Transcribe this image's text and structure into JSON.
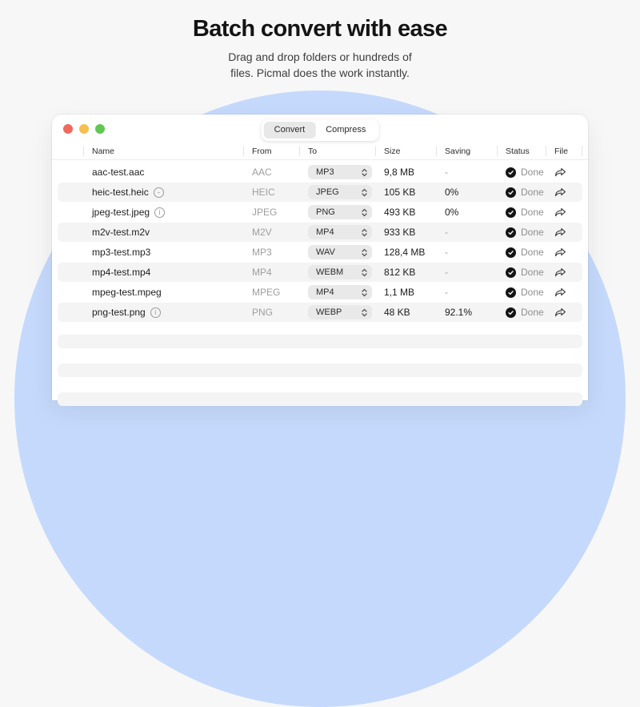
{
  "hero": {
    "title": "Batch convert with ease",
    "subtitle_line1": "Drag and drop folders or hundreds of",
    "subtitle_line2": "files. Picmal does the work instantly."
  },
  "window": {
    "tabs": [
      {
        "label": "Convert",
        "selected": true
      },
      {
        "label": "Compress",
        "selected": false
      }
    ],
    "columns": {
      "name": "Name",
      "from": "From",
      "to": "To",
      "size": "Size",
      "saving": "Saving",
      "status": "Status",
      "file": "File"
    },
    "rows": [
      {
        "name": "aac-test.aac",
        "badge": null,
        "from": "AAC",
        "to": "MP3",
        "size": "9,8 MB",
        "saving": "-",
        "status": "Done"
      },
      {
        "name": "heic-test.heic",
        "badge": "minus-circle",
        "from": "HEIC",
        "to": "JPEG",
        "size": "105 KB",
        "saving": "0%",
        "status": "Done"
      },
      {
        "name": "jpeg-test.jpeg",
        "badge": "info-circle",
        "from": "JPEG",
        "to": "PNG",
        "size": "493 KB",
        "saving": "0%",
        "status": "Done"
      },
      {
        "name": "m2v-test.m2v",
        "badge": null,
        "from": "M2V",
        "to": "MP4",
        "size": "933 KB",
        "saving": "-",
        "status": "Done"
      },
      {
        "name": "mp3-test.mp3",
        "badge": null,
        "from": "MP3",
        "to": "WAV",
        "size": "128,4 MB",
        "saving": "-",
        "status": "Done"
      },
      {
        "name": "mp4-test.mp4",
        "badge": null,
        "from": "MP4",
        "to": "WEBM",
        "size": "812 KB",
        "saving": "-",
        "status": "Done"
      },
      {
        "name": "mpeg-test.mpeg",
        "badge": null,
        "from": "MPEG",
        "to": "MP4",
        "size": "1,1 MB",
        "saving": "-",
        "status": "Done"
      },
      {
        "name": "png-test.png",
        "badge": "info-circle",
        "from": "PNG",
        "to": "WEBP",
        "size": "48 KB",
        "saving": "92.1%",
        "status": "Done"
      }
    ],
    "placeholder_row_count": 3,
    "icons": {
      "stepper": "up-down-chevrons-icon",
      "status_done": "check-circle-icon",
      "file_share": "share-arrow-icon"
    }
  },
  "colors": {
    "page_background": "#f7f7f7",
    "blob": "#c5d9fc",
    "row_stripe": "#f4f4f4",
    "traffic_red": "#ee6a5f",
    "traffic_yellow": "#f5bf4f",
    "traffic_green": "#62c654",
    "status_dot": "#141414"
  }
}
